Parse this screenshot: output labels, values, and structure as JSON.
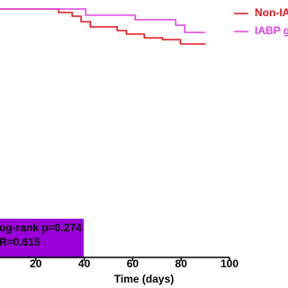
{
  "chart_data": {
    "type": "step",
    "x_label": "Time (days)",
    "xlim": [
      0,
      100
    ],
    "xticks": [
      20,
      40,
      60,
      80,
      100
    ],
    "ylim": [
      0,
      100
    ],
    "series": [
      {
        "name": "Non-IA",
        "color": "#e8141c",
        "x": [
          0,
          29.4,
          35,
          38.7,
          42.5,
          53.6,
          57.4,
          64.8,
          72.3,
          79.7,
          90.1
        ],
        "values": [
          100,
          98.6,
          97.1,
          94.9,
          92.8,
          91.3,
          89.9,
          88.4,
          87.7,
          85.9,
          85.9
        ]
      },
      {
        "name": "IABP g",
        "color": "#e040e0",
        "x": [
          0,
          40.6,
          61,
          77.8,
          81.5,
          90.1
        ],
        "values": [
          100,
          97.5,
          95.7,
          93.5,
          90.6,
          90.6
        ]
      }
    ],
    "annotations": [
      "og-rank p=0.274",
      "R=0.615"
    ],
    "annotation_color": "#9b00d8"
  }
}
